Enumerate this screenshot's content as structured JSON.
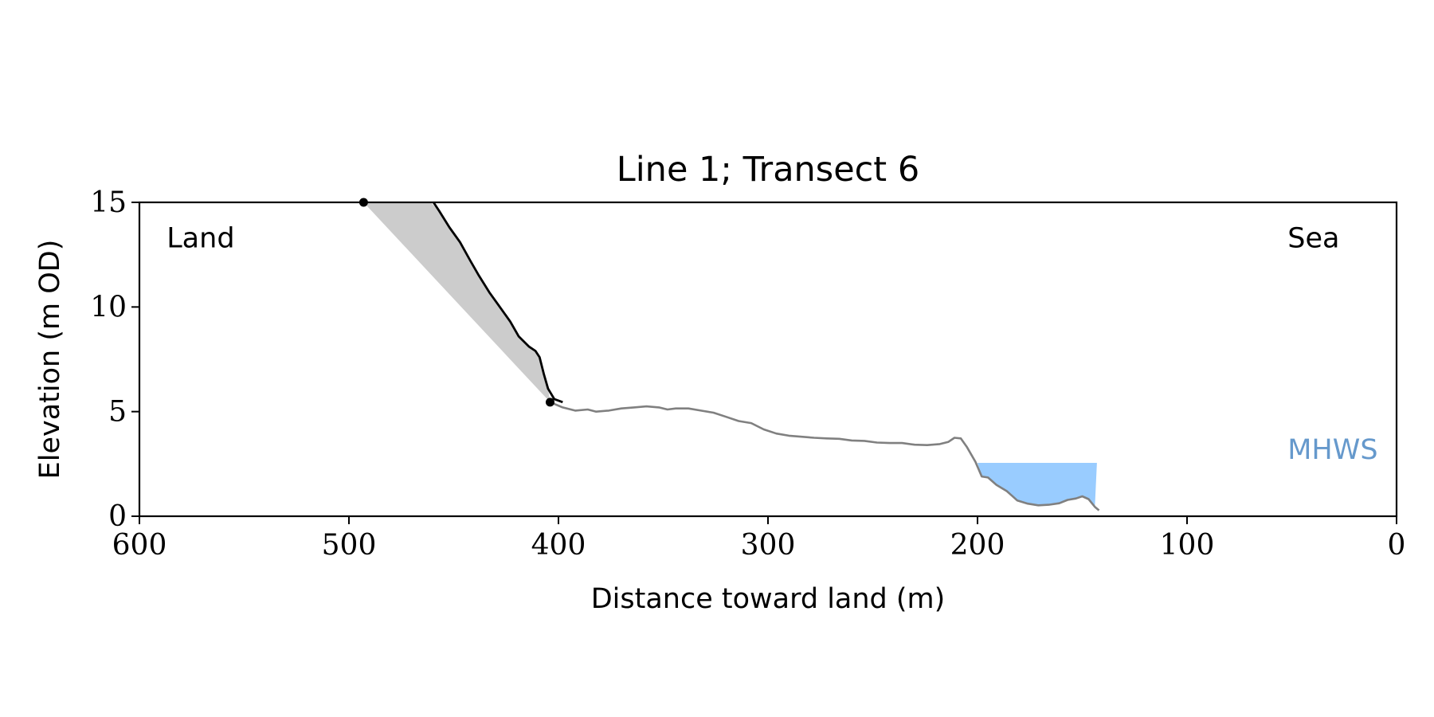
{
  "chart_data": {
    "type": "line",
    "title": "Line 1; Transect 6",
    "xlabel": "Distance toward land (m)",
    "ylabel": "Elevation (m OD)",
    "xlim": [
      600,
      0
    ],
    "ylim": [
      0,
      15
    ],
    "x_ticks": [
      600,
      500,
      400,
      300,
      200,
      100,
      0
    ],
    "y_ticks": [
      0,
      5,
      10,
      15
    ],
    "grid": false,
    "annotations": [
      {
        "text": "Land",
        "x": 587,
        "y": 13.3,
        "color": "#000000"
      },
      {
        "text": "Sea",
        "x": 52,
        "y": 13.3,
        "color": "#000000"
      },
      {
        "text": "MHWS",
        "x": 52,
        "y": 3.2,
        "color": "#6699cc"
      }
    ],
    "cliff_profile": {
      "color": "#000000",
      "points": [
        [
          461,
          15.2
        ],
        [
          457,
          14.6
        ],
        [
          452,
          13.8
        ],
        [
          447,
          13.1
        ],
        [
          442,
          12.2
        ],
        [
          438,
          11.5
        ],
        [
          433,
          10.7
        ],
        [
          428,
          10.0
        ],
        [
          423,
          9.3
        ],
        [
          419,
          8.6
        ],
        [
          414,
          8.1
        ],
        [
          411,
          7.9
        ],
        [
          409,
          7.6
        ],
        [
          407,
          6.8
        ],
        [
          405,
          6.1
        ],
        [
          402,
          5.6
        ],
        [
          398,
          5.45
        ]
      ]
    },
    "ground_profile": {
      "color": "#808080",
      "points": [
        [
          404,
          5.45
        ],
        [
          398,
          5.2
        ],
        [
          392,
          5.05
        ],
        [
          386,
          5.1
        ],
        [
          382,
          5.0
        ],
        [
          376,
          5.05
        ],
        [
          370,
          5.15
        ],
        [
          364,
          5.2
        ],
        [
          358,
          5.25
        ],
        [
          352,
          5.2
        ],
        [
          348,
          5.1
        ],
        [
          344,
          5.15
        ],
        [
          338,
          5.15
        ],
        [
          332,
          5.05
        ],
        [
          326,
          4.95
        ],
        [
          320,
          4.75
        ],
        [
          314,
          4.55
        ],
        [
          308,
          4.45
        ],
        [
          302,
          4.15
        ],
        [
          296,
          3.95
        ],
        [
          290,
          3.85
        ],
        [
          284,
          3.8
        ],
        [
          278,
          3.75
        ],
        [
          272,
          3.72
        ],
        [
          266,
          3.7
        ],
        [
          260,
          3.62
        ],
        [
          254,
          3.6
        ],
        [
          248,
          3.52
        ],
        [
          242,
          3.5
        ],
        [
          236,
          3.5
        ],
        [
          230,
          3.42
        ],
        [
          224,
          3.4
        ],
        [
          218,
          3.45
        ],
        [
          214,
          3.55
        ],
        [
          211,
          3.75
        ],
        [
          208,
          3.72
        ],
        [
          205,
          3.3
        ],
        [
          201,
          2.6
        ],
        [
          198,
          1.9
        ],
        [
          195,
          1.85
        ],
        [
          191,
          1.5
        ],
        [
          186,
          1.2
        ],
        [
          181,
          0.75
        ],
        [
          176,
          0.6
        ],
        [
          171,
          0.52
        ],
        [
          166,
          0.55
        ],
        [
          161,
          0.62
        ],
        [
          157,
          0.78
        ],
        [
          153,
          0.85
        ],
        [
          150,
          0.95
        ],
        [
          147,
          0.82
        ],
        [
          144,
          0.45
        ],
        [
          142,
          0.28
        ]
      ]
    },
    "cliff_top_marker": {
      "x": 493,
      "y": 15.0,
      "color": "#000000"
    },
    "cliff_toe_marker": {
      "x": 404,
      "y": 5.45,
      "color": "#000000"
    },
    "shaded_wedge": {
      "color": "#cccccc",
      "polygon": [
        [
          493,
          15.0
        ],
        [
          461,
          15.0
        ],
        [
          457,
          14.6
        ],
        [
          452,
          13.8
        ],
        [
          447,
          13.1
        ],
        [
          442,
          12.2
        ],
        [
          438,
          11.5
        ],
        [
          433,
          10.7
        ],
        [
          428,
          10.0
        ],
        [
          423,
          9.3
        ],
        [
          419,
          8.6
        ],
        [
          414,
          8.1
        ],
        [
          411,
          7.9
        ],
        [
          409,
          7.6
        ],
        [
          407,
          6.8
        ],
        [
          405,
          6.1
        ],
        [
          404,
          5.45
        ]
      ]
    },
    "water_fill": {
      "color": "#99ccff",
      "mhws_level": 2.55,
      "x_start": 200,
      "x_end": 143
    }
  }
}
